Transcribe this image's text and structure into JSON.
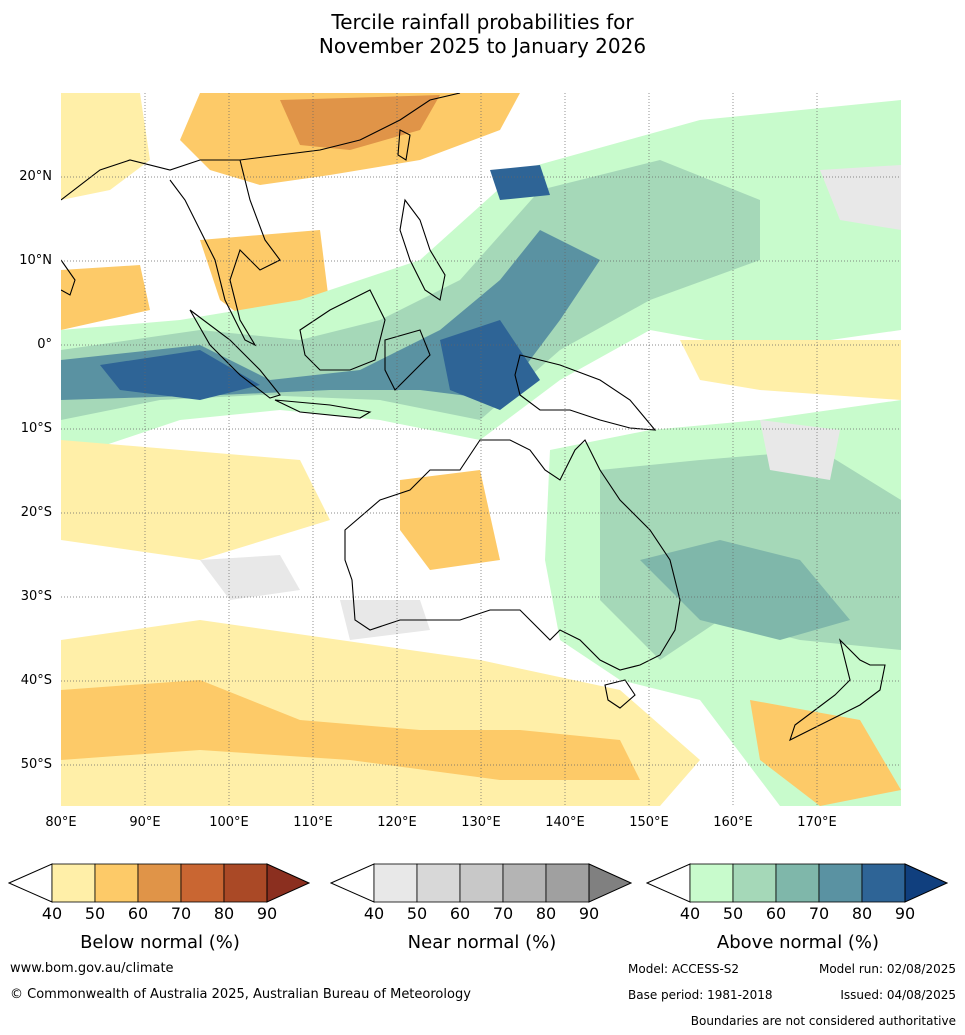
{
  "title": {
    "line1": "Tercile rainfall probabilities for",
    "line2": "November 2025 to January 2026"
  },
  "axes": {
    "lat_labels": [
      "20°N",
      "10°N",
      "0°",
      "10°S",
      "20°S",
      "30°S",
      "40°S",
      "50°S"
    ],
    "lon_labels": [
      "80°E",
      "90°E",
      "100°E",
      "110°E",
      "120°E",
      "130°E",
      "140°E",
      "150°E",
      "160°E",
      "170°E"
    ]
  },
  "legends": [
    {
      "title": "Below normal (%)",
      "ticks": [
        "40",
        "50",
        "60",
        "70",
        "80",
        "90"
      ],
      "colors": [
        "#ffefa8",
        "#fdca68",
        "#e09448",
        "#c96632",
        "#aa4926",
        "#8b2f1f"
      ]
    },
    {
      "title": "Near normal (%)",
      "ticks": [
        "40",
        "50",
        "60",
        "70",
        "80",
        "90"
      ],
      "colors": [
        "#e8e8e8",
        "#d8d8d8",
        "#c8c8c8",
        "#b4b4b4",
        "#a0a0a0",
        "#808080"
      ]
    },
    {
      "title": "Above normal (%)",
      "ticks": [
        "40",
        "50",
        "60",
        "70",
        "80",
        "90"
      ],
      "colors": [
        "#c8fbcc",
        "#a5d8b8",
        "#7fb7aa",
        "#5a92a2",
        "#2e6496",
        "#103f7e"
      ]
    }
  ],
  "footer": {
    "website": "www.bom.gov.au/climate",
    "copyright": "© Commonwealth of Australia 2025, Australian Bureau of Meteorology",
    "model": "Model: ACCESS-S2",
    "model_run": "Model run: 02/08/2025",
    "base_period": "Base period: 1981-2018",
    "issued": "Issued: 04/08/2025",
    "disclaimer": "Boundaries are not considered authoritative"
  }
}
